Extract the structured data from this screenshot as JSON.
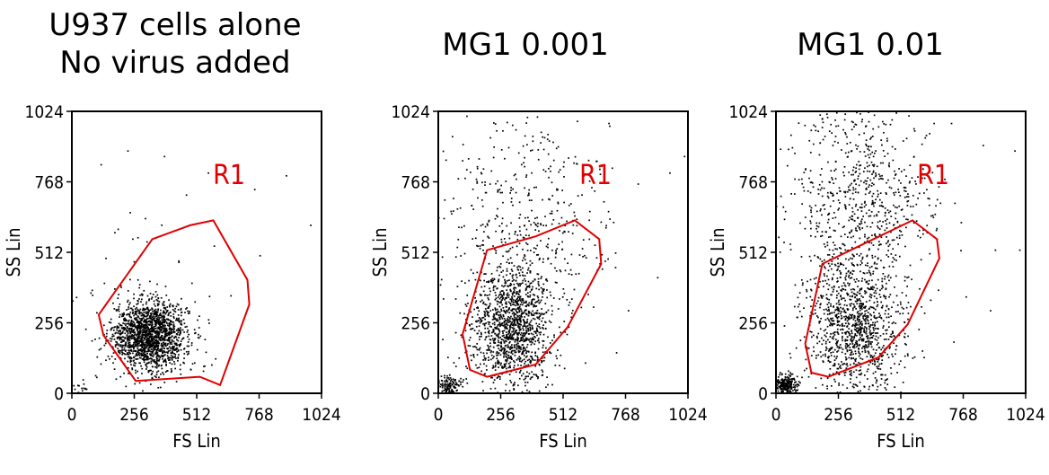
{
  "chart_data": [
    {
      "type": "scatter",
      "title": "U937 cells alone\nNo virus added",
      "xlabel": "FS Lin",
      "ylabel": "SS Lin",
      "xlim": [
        0,
        1024
      ],
      "ylim": [
        0,
        1024
      ],
      "xticks": [
        "0",
        "256",
        "512",
        "768",
        "1024"
      ],
      "yticks": [
        "0",
        "256",
        "512",
        "768",
        "1024"
      ],
      "gate": {
        "label": "R1",
        "color": "#e00000",
        "polygon": [
          [
            130,
            210
          ],
          [
            262,
            45
          ],
          [
            525,
            60
          ],
          [
            608,
            30
          ],
          [
            728,
            323
          ],
          [
            720,
            412
          ],
          [
            580,
            628
          ],
          [
            485,
            610
          ],
          [
            330,
            560
          ],
          [
            110,
            285
          ]
        ]
      },
      "populations": [
        {
          "cx": 320,
          "cy": 210,
          "sx": 75,
          "sy": 62,
          "n": 1700
        },
        {
          "cx": 310,
          "cy": 300,
          "sx": 180,
          "sy": 200,
          "n": 70
        },
        {
          "cx": 40,
          "cy": 15,
          "sx": 20,
          "sy": 12,
          "n": 20
        }
      ],
      "outliers": [
        [
          120,
          830
        ],
        [
          230,
          880
        ],
        [
          380,
          860
        ],
        [
          470,
          720
        ],
        [
          560,
          800
        ],
        [
          750,
          740
        ],
        [
          880,
          790
        ],
        [
          980,
          610
        ],
        [
          250,
          560
        ],
        [
          140,
          490
        ]
      ]
    },
    {
      "type": "scatter",
      "title": "MG1 0.001",
      "xlabel": "FS Lin",
      "ylabel": "SS Lin",
      "xlim": [
        0,
        1024
      ],
      "ylim": [
        0,
        1024
      ],
      "xticks": [
        "0",
        "256",
        "512",
        "768",
        "1024"
      ],
      "yticks": [
        "0",
        "256",
        "512",
        "768",
        "1024"
      ],
      "gate": {
        "label": "R1",
        "color": "#e00000",
        "polygon": [
          [
            200,
            60
          ],
          [
            400,
            105
          ],
          [
            530,
            240
          ],
          [
            668,
            470
          ],
          [
            660,
            560
          ],
          [
            560,
            628
          ],
          [
            400,
            570
          ],
          [
            200,
            520
          ],
          [
            100,
            215
          ],
          [
            130,
            85
          ]
        ]
      },
      "populations": [
        {
          "cx": 300,
          "cy": 240,
          "sx": 85,
          "sy": 110,
          "n": 1300
        },
        {
          "cx": 340,
          "cy": 620,
          "sx": 170,
          "sy": 200,
          "n": 450
        },
        {
          "cx": 45,
          "cy": 30,
          "sx": 25,
          "sy": 20,
          "n": 140
        }
      ],
      "outliers": [
        [
          700,
          980
        ],
        [
          820,
          760
        ],
        [
          950,
          800
        ],
        [
          600,
          500
        ],
        [
          780,
          300
        ],
        [
          900,
          420
        ],
        [
          1010,
          860
        ],
        [
          450,
          940
        ]
      ]
    },
    {
      "type": "scatter",
      "title": "MG1 0.01",
      "xlabel": "FS Lin",
      "ylabel": "SS Lin",
      "xlim": [
        0,
        1024
      ],
      "ylim": [
        0,
        1024
      ],
      "xticks": [
        "0",
        "256",
        "512",
        "768",
        "1024"
      ],
      "yticks": [
        "0",
        "256",
        "512",
        "768",
        "1024"
      ],
      "gate": {
        "label": "R1",
        "color": "#e00000",
        "polygon": [
          [
            215,
            60
          ],
          [
            420,
            130
          ],
          [
            540,
            250
          ],
          [
            670,
            490
          ],
          [
            660,
            560
          ],
          [
            560,
            628
          ],
          [
            400,
            560
          ],
          [
            190,
            470
          ],
          [
            120,
            180
          ],
          [
            145,
            75
          ]
        ]
      },
      "populations": [
        {
          "cx": 320,
          "cy": 240,
          "sx": 100,
          "sy": 130,
          "n": 1100
        },
        {
          "cx": 360,
          "cy": 700,
          "sx": 140,
          "sy": 200,
          "n": 750
        },
        {
          "cx": 40,
          "cy": 30,
          "sx": 25,
          "sy": 20,
          "n": 220
        }
      ],
      "outliers": [
        [
          720,
          980
        ],
        [
          850,
          900
        ],
        [
          980,
          880
        ],
        [
          760,
          620
        ],
        [
          900,
          520
        ],
        [
          1000,
          520
        ],
        [
          880,
          300
        ],
        [
          780,
          350
        ]
      ]
    }
  ]
}
